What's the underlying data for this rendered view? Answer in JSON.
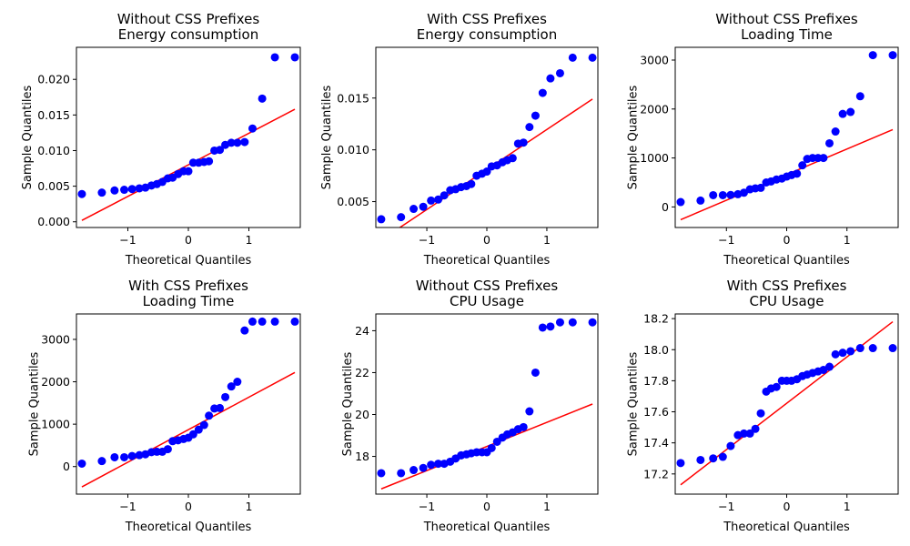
{
  "chart_data": [
    {
      "type": "scatter",
      "title": [
        "Without CSS Prefixes",
        "Energy consumption"
      ],
      "xlabel": "Theoretical Quantiles",
      "ylabel": "Sample Quantiles",
      "xlim": [
        -1.85,
        1.85
      ],
      "ylim": [
        -0.0008,
        0.0245
      ],
      "xticks": [
        -1,
        0,
        1
      ],
      "xtick_labels": [
        "−1",
        "0",
        "1"
      ],
      "yticks": [
        0.0,
        0.005,
        0.01,
        0.015,
        0.02
      ],
      "ytick_labels": [
        "0.000",
        "0.005",
        "0.010",
        "0.015",
        "0.020"
      ],
      "x": [
        -1.76,
        -1.43,
        -1.22,
        -1.06,
        -0.93,
        -0.81,
        -0.71,
        -0.61,
        -0.52,
        -0.43,
        -0.34,
        -0.26,
        -0.17,
        -0.08,
        0.0,
        0.08,
        0.17,
        0.26,
        0.34,
        0.43,
        0.52,
        0.61,
        0.71,
        0.81,
        0.93,
        1.06,
        1.22,
        1.43,
        1.76
      ],
      "y": [
        0.0039,
        0.0041,
        0.0044,
        0.0045,
        0.0046,
        0.0047,
        0.0048,
        0.0051,
        0.0053,
        0.0056,
        0.0061,
        0.0062,
        0.0067,
        0.0071,
        0.0071,
        0.0083,
        0.0083,
        0.0084,
        0.0085,
        0.01,
        0.0101,
        0.0108,
        0.0111,
        0.0111,
        0.0112,
        0.0131,
        0.0173,
        0.0231,
        0.0231
      ],
      "fit_line": {
        "x": [
          -1.76,
          1.76
        ],
        "y": [
          0.0002,
          0.0158
        ]
      },
      "point_color": "#0000ff",
      "line_color": "#ff0000"
    },
    {
      "type": "scatter",
      "title": [
        "With CSS Prefixes",
        "Energy consumption"
      ],
      "xlabel": "Theoretical Quantiles",
      "ylabel": "Sample Quantiles",
      "xlim": [
        -1.85,
        1.85
      ],
      "ylim": [
        0.0025,
        0.0199
      ],
      "xticks": [
        -1,
        0,
        1
      ],
      "xtick_labels": [
        "−1",
        "0",
        "1"
      ],
      "yticks": [
        0.005,
        0.01,
        0.015
      ],
      "ytick_labels": [
        "0.005",
        "0.010",
        "0.015"
      ],
      "x": [
        -1.76,
        -1.43,
        -1.22,
        -1.06,
        -0.93,
        -0.81,
        -0.71,
        -0.61,
        -0.52,
        -0.43,
        -0.34,
        -0.26,
        -0.17,
        -0.08,
        0.0,
        0.08,
        0.17,
        0.26,
        0.34,
        0.43,
        0.52,
        0.61,
        0.71,
        0.81,
        0.93,
        1.06,
        1.22,
        1.43,
        1.76
      ],
      "y": [
        0.0033,
        0.0035,
        0.0043,
        0.0045,
        0.0051,
        0.0052,
        0.0056,
        0.0061,
        0.0062,
        0.0064,
        0.0065,
        0.0067,
        0.0075,
        0.0077,
        0.0079,
        0.0084,
        0.0085,
        0.0088,
        0.009,
        0.0092,
        0.0106,
        0.0107,
        0.0122,
        0.0133,
        0.0155,
        0.0169,
        0.0174,
        0.0189,
        0.0189
      ],
      "fit_line": {
        "x": [
          -1.76,
          1.76
        ],
        "y": [
          0.0013,
          0.0149
        ]
      },
      "point_color": "#0000ff",
      "line_color": "#ff0000"
    },
    {
      "type": "scatter",
      "title": [
        "Without CSS Prefixes",
        "Loading Time"
      ],
      "xlabel": "Theoretical Quantiles",
      "ylabel": "Sample Quantiles",
      "xlim": [
        -1.85,
        1.85
      ],
      "ylim": [
        -420,
        3260
      ],
      "xticks": [
        -1,
        0,
        1
      ],
      "xtick_labels": [
        "−1",
        "0",
        "1"
      ],
      "yticks": [
        0,
        1000,
        2000,
        3000
      ],
      "ytick_labels": [
        "0",
        "1000",
        "2000",
        "3000"
      ],
      "x": [
        -1.76,
        -1.43,
        -1.22,
        -1.06,
        -0.93,
        -0.81,
        -0.71,
        -0.61,
        -0.52,
        -0.43,
        -0.34,
        -0.26,
        -0.17,
        -0.08,
        0.0,
        0.08,
        0.17,
        0.26,
        0.34,
        0.43,
        0.52,
        0.61,
        0.71,
        0.81,
        0.93,
        1.06,
        1.22,
        1.43,
        1.76
      ],
      "y": [
        100,
        130,
        240,
        240,
        245,
        260,
        290,
        360,
        380,
        390,
        500,
        520,
        560,
        580,
        620,
        650,
        680,
        850,
        980,
        1000,
        1000,
        1000,
        1300,
        1540,
        1900,
        1940,
        2260,
        3100,
        3100
      ],
      "fit_line": {
        "x": [
          -1.76,
          1.76
        ],
        "y": [
          -260,
          1580
        ]
      },
      "point_color": "#0000ff",
      "line_color": "#ff0000"
    },
    {
      "type": "scatter",
      "title": [
        "With CSS Prefixes",
        "Loading Time"
      ],
      "xlabel": "Theoretical Quantiles",
      "ylabel": "Sample Quantiles",
      "xlim": [
        -1.85,
        1.85
      ],
      "ylim": [
        -650,
        3600
      ],
      "xticks": [
        -1,
        0,
        1
      ],
      "xtick_labels": [
        "−1",
        "0",
        "1"
      ],
      "yticks": [
        0,
        1000,
        2000,
        3000
      ],
      "ytick_labels": [
        "0",
        "1000",
        "2000",
        "3000"
      ],
      "x": [
        -1.76,
        -1.43,
        -1.22,
        -1.06,
        -0.93,
        -0.81,
        -0.71,
        -0.61,
        -0.52,
        -0.43,
        -0.34,
        -0.26,
        -0.17,
        -0.08,
        0.0,
        0.08,
        0.17,
        0.26,
        0.34,
        0.43,
        0.52,
        0.61,
        0.71,
        0.81,
        0.93,
        1.06,
        1.22,
        1.43,
        1.76
      ],
      "y": [
        70,
        130,
        220,
        220,
        250,
        270,
        290,
        340,
        350,
        350,
        410,
        600,
        620,
        650,
        680,
        760,
        870,
        980,
        1200,
        1370,
        1380,
        1640,
        1890,
        2000,
        3210,
        3420,
        3420,
        3420,
        3420
      ],
      "fit_line": {
        "x": [
          -1.76,
          1.76
        ],
        "y": [
          -480,
          2220
        ]
      },
      "point_color": "#0000ff",
      "line_color": "#ff0000"
    },
    {
      "type": "scatter",
      "title": [
        "Without CSS Prefixes",
        "CPU Usage"
      ],
      "xlabel": "Theoretical Quantiles",
      "ylabel": "Sample Quantiles",
      "xlim": [
        -1.85,
        1.85
      ],
      "ylim": [
        16.2,
        24.8
      ],
      "xticks": [
        -1,
        0,
        1
      ],
      "xtick_labels": [
        "−1",
        "0",
        "1"
      ],
      "yticks": [
        18,
        20,
        22,
        24
      ],
      "ytick_labels": [
        "18",
        "20",
        "22",
        "24"
      ],
      "x": [
        -1.76,
        -1.43,
        -1.22,
        -1.06,
        -0.93,
        -0.81,
        -0.71,
        -0.61,
        -0.52,
        -0.43,
        -0.34,
        -0.26,
        -0.17,
        -0.08,
        0.0,
        0.08,
        0.17,
        0.26,
        0.34,
        0.43,
        0.52,
        0.61,
        0.71,
        0.81,
        0.93,
        1.06,
        1.22,
        1.43,
        1.76
      ],
      "y": [
        17.2,
        17.2,
        17.35,
        17.45,
        17.6,
        17.65,
        17.65,
        17.75,
        17.9,
        18.05,
        18.1,
        18.15,
        18.2,
        18.2,
        18.2,
        18.4,
        18.7,
        18.9,
        19.05,
        19.15,
        19.3,
        19.4,
        20.15,
        22.0,
        24.15,
        24.2,
        24.4,
        24.4,
        24.4
      ],
      "fit_line": {
        "x": [
          -1.76,
          1.76
        ],
        "y": [
          16.45,
          20.5
        ]
      },
      "point_color": "#0000ff",
      "line_color": "#ff0000"
    },
    {
      "type": "scatter",
      "title": [
        "With CSS Prefixes",
        "CPU Usage"
      ],
      "xlabel": "Theoretical Quantiles",
      "ylabel": "Sample Quantiles",
      "xlim": [
        -1.85,
        1.85
      ],
      "ylim": [
        17.07,
        18.23
      ],
      "xticks": [
        -1,
        0,
        1
      ],
      "xtick_labels": [
        "−1",
        "0",
        "1"
      ],
      "yticks": [
        17.2,
        17.4,
        17.6,
        17.8,
        18.0,
        18.2
      ],
      "ytick_labels": [
        "17.2",
        "17.4",
        "17.6",
        "17.8",
        "18.0",
        "18.2"
      ],
      "x": [
        -1.76,
        -1.43,
        -1.22,
        -1.06,
        -0.93,
        -0.81,
        -0.71,
        -0.61,
        -0.52,
        -0.43,
        -0.34,
        -0.26,
        -0.17,
        -0.08,
        0.0,
        0.08,
        0.17,
        0.26,
        0.34,
        0.43,
        0.52,
        0.61,
        0.71,
        0.81,
        0.93,
        1.06,
        1.22,
        1.43,
        1.76
      ],
      "y": [
        17.27,
        17.29,
        17.3,
        17.31,
        17.38,
        17.45,
        17.46,
        17.46,
        17.49,
        17.59,
        17.73,
        17.75,
        17.76,
        17.8,
        17.8,
        17.8,
        17.81,
        17.83,
        17.84,
        17.85,
        17.86,
        17.87,
        17.89,
        17.97,
        17.98,
        17.99,
        18.01,
        18.01,
        18.01
      ],
      "fit_line": {
        "x": [
          -1.76,
          1.76
        ],
        "y": [
          17.13,
          18.18
        ]
      },
      "point_color": "#0000ff",
      "line_color": "#ff0000"
    }
  ]
}
